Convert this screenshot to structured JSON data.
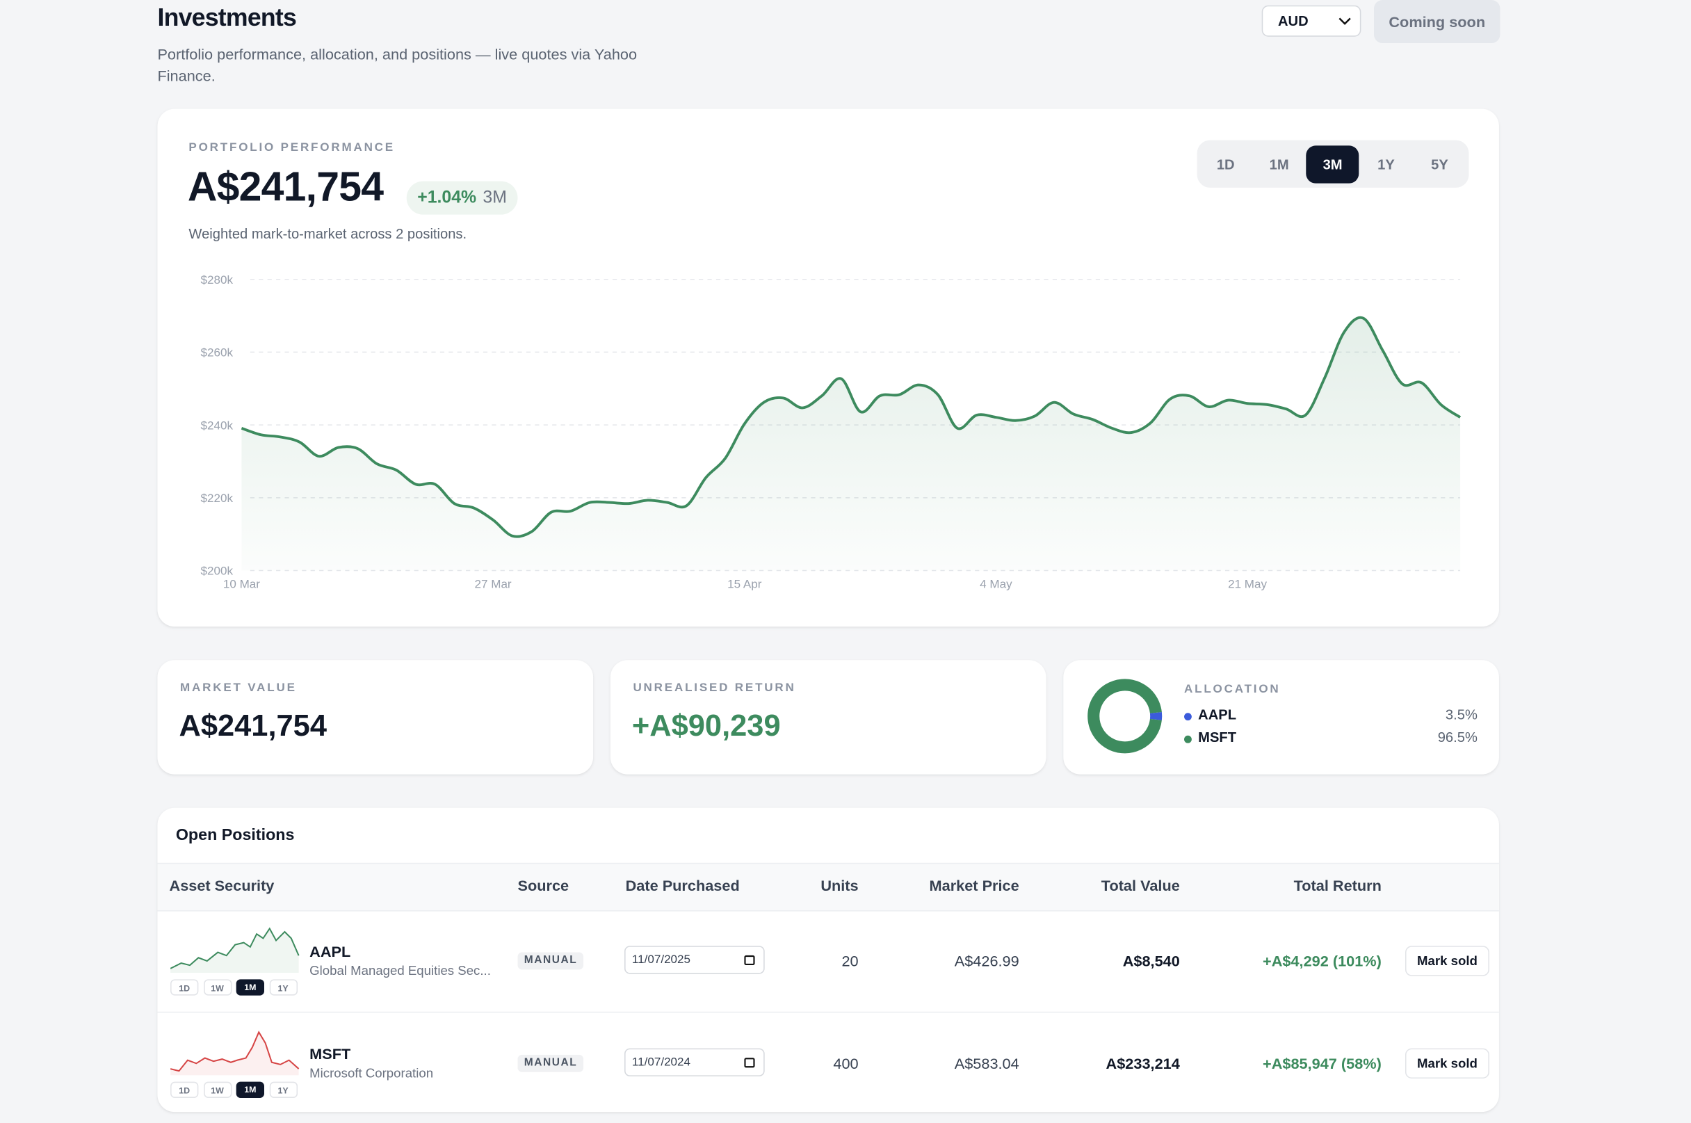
{
  "header": {
    "title": "Investments",
    "subtitle": "Portfolio performance, allocation, and positions — live quotes via Yahoo Finance.",
    "currency": "AUD",
    "action": "Coming soon"
  },
  "performance": {
    "label": "PORTFOLIO PERFORMANCE",
    "value": "A$241,754",
    "change": "+1.04%",
    "period": "3M",
    "note": "Weighted mark-to-market across 2 positions.",
    "ranges": [
      "1D",
      "1M",
      "3M",
      "1Y",
      "5Y"
    ],
    "active_range": 2
  },
  "chart_data": [
    {
      "type": "area",
      "categories": [
        "10 Mar",
        null,
        null,
        null,
        null,
        null,
        null,
        null,
        null,
        null,
        null,
        null,
        null,
        "27 Mar",
        null,
        null,
        null,
        null,
        null,
        null,
        null,
        null,
        null,
        null,
        null,
        null,
        "15 Apr",
        null,
        null,
        null,
        null,
        null,
        null,
        null,
        null,
        null,
        null,
        null,
        null,
        "4 May",
        null,
        null,
        null,
        null,
        null,
        null,
        null,
        null,
        null,
        null,
        null,
        null,
        "21 May",
        null,
        null,
        null,
        null,
        null,
        null,
        null,
        null,
        null,
        null,
        null
      ],
      "series": [
        {
          "color": "#3d8b5e",
          "values": [
            239100,
            237300,
            236700,
            235300,
            231400,
            233800,
            233500,
            229300,
            227600,
            223700,
            223700,
            218400,
            217200,
            213900,
            209500,
            210700,
            216000,
            216300,
            218700,
            218700,
            218400,
            219300,
            218700,
            217800,
            225500,
            230800,
            240300,
            246200,
            247400,
            244700,
            248000,
            252700,
            243600,
            248000,
            248300,
            251000,
            248300,
            239100,
            242700,
            242100,
            241200,
            242400,
            246200,
            243000,
            241500,
            239100,
            237900,
            240600,
            247100,
            248000,
            245000,
            246800,
            245900,
            245600,
            244400,
            242700,
            253000,
            265500,
            269300,
            260400,
            251300,
            251600,
            245600,
            242100
          ]
        }
      ],
      "ylim": [
        200000,
        280000
      ],
      "yticks": [
        {
          "value": 200000,
          "label": "$200k"
        },
        {
          "value": 220000,
          "label": "$220k"
        },
        {
          "value": 240000,
          "label": "$240k"
        },
        {
          "value": 260000,
          "label": "$260k"
        },
        {
          "value": 280000,
          "label": "$280k"
        }
      ],
      "grid": true
    },
    {
      "type": "pie",
      "title": "ALLOCATION",
      "categories": [
        "AAPL",
        "MSFT"
      ],
      "values": [
        3.5,
        96.5
      ],
      "value_labels": [
        "3.5%",
        "96.5%"
      ],
      "colors": [
        "#3b5bdb",
        "#3d8b5e"
      ]
    }
  ],
  "stats": [
    {
      "label": "MARKET VALUE",
      "value": "A$241,754"
    },
    {
      "label": "UNREALISED RETURN",
      "value": "+A$90,239"
    }
  ],
  "positions": {
    "title": "Open Positions",
    "columns": [
      "Asset Security",
      "Source",
      "Date Purchased",
      "Units",
      "Market Price",
      "Total Value",
      "Total Return"
    ],
    "rows": [
      {
        "ticker": "AAPL",
        "name": "Global Managed Equities Sec...",
        "source": "MANUAL",
        "date": "11/07/2025",
        "units": 20,
        "price": "A$426.99",
        "total_value": "A$8,540",
        "total_return": "+A$4,292 (101%)",
        "ranges": [
          "1D",
          "1W",
          "1M",
          "1Y"
        ],
        "active_range": 2,
        "color": "#3d8b5e",
        "action": "Mark sold"
      },
      {
        "ticker": "MSFT",
        "name": "Microsoft Corporation",
        "source": "MANUAL",
        "date": "11/07/2024",
        "units": 400,
        "price": "A$583.04",
        "total_value": "A$233,214",
        "total_return": "+A$85,947 (58%)",
        "ranges": [
          "1D",
          "1W",
          "1M",
          "1Y"
        ],
        "active_range": 2,
        "color": "#d64545",
        "action": "Mark sold"
      }
    ]
  }
}
